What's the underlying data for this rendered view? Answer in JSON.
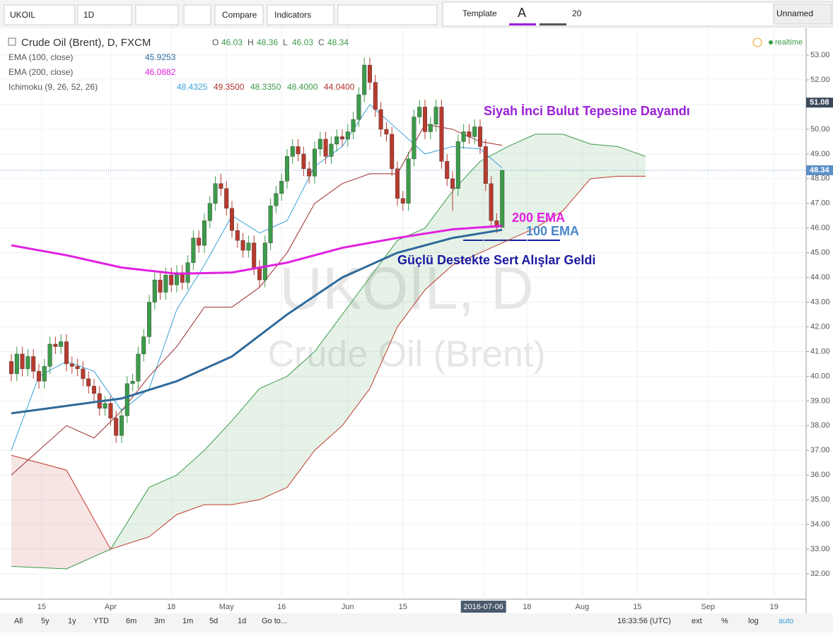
{
  "toolbar": {
    "symbol": "UKOIL",
    "interval": "1D",
    "compare": "Compare",
    "indicators": "Indicators",
    "template": "Template",
    "font_icon": "A",
    "font_size": "20",
    "layout": "Unnamed"
  },
  "bottom_bar": {
    "ranges": [
      "All",
      "5y",
      "1y",
      "YTD",
      "6m",
      "3m",
      "1m",
      "5d",
      "1d",
      "Go to..."
    ],
    "clock": "16:33:56 (UTC)",
    "options": [
      "ext",
      "%",
      "log",
      "auto"
    ]
  },
  "chart_data": {
    "type": "candlestick",
    "title": "Crude Oil (Brent), D, FXCM",
    "status": "realtime",
    "watermark": [
      "UKOIL, D",
      "Crude Oil (Brent)"
    ],
    "ohlc_labels": [
      "O",
      "H",
      "L",
      "C"
    ],
    "indicators": [
      {
        "name": "EMA (100, close)",
        "values": [
          45.9253
        ],
        "color": "#2c6a9e"
      },
      {
        "name": "EMA (200, close)",
        "values": [
          46.0882
        ],
        "color": "#e020e0"
      },
      {
        "name": "Ichimoku (9, 26, 52, 26)",
        "values": [
          48.4325,
          49.35,
          48.335,
          48.4,
          44.04
        ],
        "value_labels": [
          "48.4325",
          "49.3500",
          "48.3350",
          "48.4000",
          "44.0400"
        ],
        "colors": [
          "#3aa0d8",
          "#b03030",
          "#3c9b4a",
          "#3c9b4a",
          "#b03030"
        ]
      }
    ],
    "up_color": "#3c9b4a",
    "down_color": "#b83a2e",
    "candles": [
      [
        40.6,
        40.9,
        39.8,
        40.1
      ],
      [
        40.1,
        41.2,
        39.8,
        40.9
      ],
      [
        40.9,
        41.2,
        40.0,
        40.3
      ],
      [
        40.3,
        41.1,
        40.0,
        40.8
      ],
      [
        40.8,
        41.1,
        39.9,
        40.2
      ],
      [
        40.2,
        40.5,
        39.5,
        39.8
      ],
      [
        39.8,
        40.7,
        39.5,
        40.4
      ],
      [
        40.4,
        41.6,
        40.1,
        41.3
      ],
      [
        41.3,
        41.6,
        40.9,
        41.2
      ],
      [
        41.2,
        41.7,
        40.9,
        41.4
      ],
      [
        41.4,
        41.7,
        40.2,
        40.5
      ],
      [
        40.5,
        40.8,
        40.1,
        40.4
      ],
      [
        40.4,
        40.7,
        40.0,
        40.3
      ],
      [
        40.3,
        40.6,
        39.6,
        39.9
      ],
      [
        39.9,
        40.2,
        39.3,
        39.6
      ],
      [
        39.6,
        39.9,
        39.0,
        39.3
      ],
      [
        39.3,
        39.6,
        38.4,
        38.7
      ],
      [
        38.7,
        39.2,
        38.4,
        38.9
      ],
      [
        38.9,
        39.2,
        38.0,
        38.3
      ],
      [
        38.3,
        38.6,
        37.3,
        37.6
      ],
      [
        37.6,
        38.7,
        37.3,
        38.4
      ],
      [
        38.4,
        40.0,
        38.1,
        39.7
      ],
      [
        39.7,
        40.1,
        39.4,
        39.8
      ],
      [
        39.8,
        41.2,
        39.5,
        40.9
      ],
      [
        40.9,
        41.9,
        40.6,
        41.6
      ],
      [
        41.6,
        43.3,
        41.3,
        43.0
      ],
      [
        43.0,
        44.2,
        42.7,
        43.9
      ],
      [
        43.9,
        44.2,
        43.1,
        43.4
      ],
      [
        43.4,
        44.4,
        43.1,
        44.1
      ],
      [
        44.1,
        44.4,
        43.4,
        43.7
      ],
      [
        43.7,
        44.5,
        43.4,
        44.2
      ],
      [
        44.2,
        44.5,
        43.5,
        43.8
      ],
      [
        43.8,
        44.9,
        43.5,
        44.6
      ],
      [
        44.6,
        45.9,
        44.3,
        45.6
      ],
      [
        45.6,
        45.9,
        45.0,
        45.3
      ],
      [
        45.3,
        46.6,
        45.0,
        46.3
      ],
      [
        46.3,
        47.3,
        46.0,
        47.0
      ],
      [
        47.0,
        48.1,
        46.7,
        47.8
      ],
      [
        47.8,
        48.2,
        47.3,
        47.6
      ],
      [
        47.6,
        47.9,
        46.5,
        46.8
      ],
      [
        46.8,
        47.1,
        45.6,
        45.9
      ],
      [
        45.9,
        46.2,
        45.2,
        45.5
      ],
      [
        45.5,
        45.8,
        44.8,
        45.1
      ],
      [
        45.1,
        45.7,
        44.8,
        45.4
      ],
      [
        45.4,
        45.7,
        44.1,
        44.4
      ],
      [
        44.4,
        44.7,
        43.6,
        43.9
      ],
      [
        43.9,
        45.7,
        43.6,
        45.4
      ],
      [
        45.4,
        47.2,
        45.1,
        46.9
      ],
      [
        46.9,
        47.7,
        46.6,
        47.4
      ],
      [
        47.4,
        48.2,
        47.1,
        47.9
      ],
      [
        47.9,
        49.2,
        47.6,
        48.9
      ],
      [
        48.9,
        49.6,
        48.6,
        49.3
      ],
      [
        49.3,
        49.6,
        48.7,
        49.0
      ],
      [
        49.0,
        49.3,
        48.1,
        48.4
      ],
      [
        48.4,
        48.7,
        47.8,
        48.1
      ],
      [
        48.1,
        49.5,
        47.8,
        49.2
      ],
      [
        49.2,
        49.9,
        48.9,
        49.6
      ],
      [
        49.6,
        49.9,
        48.6,
        48.9
      ],
      [
        48.9,
        49.7,
        48.6,
        49.4
      ],
      [
        49.4,
        50.0,
        49.1,
        49.7
      ],
      [
        49.7,
        50.0,
        49.3,
        49.6
      ],
      [
        49.6,
        50.2,
        49.3,
        49.9
      ],
      [
        49.9,
        50.7,
        49.6,
        50.4
      ],
      [
        50.4,
        51.7,
        50.1,
        51.4
      ],
      [
        51.4,
        52.9,
        51.1,
        52.6
      ],
      [
        52.6,
        52.9,
        51.6,
        51.9
      ],
      [
        51.9,
        52.2,
        50.5,
        50.8
      ],
      [
        50.8,
        51.1,
        49.7,
        50.0
      ],
      [
        50.0,
        50.3,
        49.5,
        49.8
      ],
      [
        49.8,
        50.1,
        48.1,
        48.4
      ],
      [
        48.4,
        48.7,
        46.9,
        47.2
      ],
      [
        47.2,
        47.5,
        46.7,
        47.0
      ],
      [
        47.0,
        49.1,
        46.7,
        48.8
      ],
      [
        48.8,
        50.8,
        48.5,
        50.5
      ],
      [
        50.5,
        51.2,
        50.2,
        50.9
      ],
      [
        50.9,
        51.2,
        49.6,
        49.9
      ],
      [
        49.9,
        50.5,
        49.6,
        50.2
      ],
      [
        50.2,
        51.2,
        49.9,
        50.9
      ],
      [
        50.9,
        51.2,
        48.4,
        48.7
      ],
      [
        48.7,
        49.0,
        47.7,
        48.0
      ],
      [
        48.0,
        48.3,
        46.7,
        47.6
      ],
      [
        47.6,
        49.8,
        47.3,
        49.5
      ],
      [
        49.5,
        50.2,
        49.2,
        49.9
      ],
      [
        49.9,
        50.2,
        49.4,
        49.7
      ],
      [
        49.7,
        50.4,
        49.4,
        50.1
      ],
      [
        50.1,
        50.4,
        49.0,
        49.3
      ],
      [
        49.3,
        49.6,
        47.5,
        47.8
      ],
      [
        47.8,
        48.1,
        46.0,
        46.3
      ],
      [
        46.3,
        46.6,
        45.8,
        46.03
      ],
      [
        46.03,
        48.36,
        46.03,
        48.34
      ]
    ],
    "lines": [
      {
        "name": "EMA 100",
        "color": "#2f6a9a",
        "width": 3,
        "x": [
          0,
          10,
          20,
          30,
          40,
          50,
          60,
          70,
          80,
          89
        ],
        "values": [
          38.5,
          38.8,
          39.1,
          39.8,
          40.8,
          42.5,
          44.0,
          45.0,
          45.6,
          45.93
        ]
      },
      {
        "name": "EMA 200",
        "color": "#e020e0",
        "width": 3,
        "x": [
          0,
          10,
          20,
          30,
          40,
          50,
          60,
          70,
          80,
          89
        ],
        "values": [
          45.3,
          44.9,
          44.4,
          44.15,
          44.2,
          44.6,
          45.2,
          45.6,
          45.95,
          46.09
        ]
      },
      {
        "name": "Tenkan",
        "color": "#3aa0d8",
        "width": 1,
        "x": [
          0,
          5,
          10,
          15,
          20,
          25,
          30,
          35,
          40,
          45,
          50,
          55,
          60,
          65,
          70,
          75,
          80,
          85,
          89
        ],
        "values": [
          37.0,
          40.0,
          40.6,
          40.2,
          38.6,
          39.5,
          42.7,
          44.5,
          46.5,
          45.8,
          46.3,
          48.5,
          49.3,
          51.0,
          50.0,
          49.0,
          49.3,
          49.2,
          48.43
        ]
      },
      {
        "name": "Kijun",
        "color": "#9b2a2a",
        "width": 1,
        "x": [
          0,
          5,
          10,
          15,
          20,
          25,
          30,
          35,
          40,
          45,
          50,
          55,
          60,
          65,
          70,
          75,
          80,
          85,
          89
        ],
        "values": [
          36.0,
          37.0,
          38.0,
          37.5,
          38.6,
          40.0,
          41.2,
          42.8,
          42.8,
          43.6,
          45.0,
          47.0,
          47.8,
          48.2,
          48.2,
          50.2,
          50.0,
          49.5,
          49.35
        ]
      }
    ],
    "cloud": {
      "x": [
        0,
        10,
        18,
        25,
        30,
        35,
        40,
        45,
        50,
        55,
        60,
        65,
        70,
        75,
        80,
        85,
        90,
        95,
        100,
        105,
        110,
        115
      ],
      "span_a": [
        32.3,
        32.2,
        33.0,
        35.5,
        36.0,
        37.0,
        38.2,
        39.5,
        40.0,
        41.0,
        42.5,
        44.0,
        45.5,
        46.0,
        47.5,
        48.7,
        49.3,
        49.8,
        49.8,
        49.4,
        49.3,
        48.9
      ],
      "span_b": [
        36.8,
        36.2,
        33.0,
        33.5,
        34.4,
        34.8,
        34.8,
        35.0,
        35.5,
        37.0,
        38.0,
        39.5,
        42.0,
        43.5,
        44.5,
        45.0,
        45.5,
        46.0,
        46.7,
        48.0,
        48.1,
        48.1
      ],
      "up_color": "#3c9b4a",
      "down_color": "#c0392b"
    },
    "price_tags": [
      {
        "value": 51.08,
        "color": "#3b4a5a"
      },
      {
        "value": 48.34,
        "color": "#5a8fc8"
      }
    ],
    "xlim": [
      -2.05,
      144.1
    ],
    "ylim": [
      30.97,
      54.09
    ],
    "yticks": [
      {
        "value": 32,
        "label": "32.00"
      },
      {
        "value": 33,
        "label": "33.00"
      },
      {
        "value": 34,
        "label": "34.00"
      },
      {
        "value": 35,
        "label": "35.00"
      },
      {
        "value": 36,
        "label": "36.00"
      },
      {
        "value": 37,
        "label": "37.00"
      },
      {
        "value": 38,
        "label": "38.00"
      },
      {
        "value": 39,
        "label": "39.00"
      },
      {
        "value": 40,
        "label": "40.00"
      },
      {
        "value": 41,
        "label": "41.00"
      },
      {
        "value": 42,
        "label": "42.00"
      },
      {
        "value": 43,
        "label": "43.00"
      },
      {
        "value": 44,
        "label": "44.00"
      },
      {
        "value": 45,
        "label": "45.00"
      },
      {
        "value": 46,
        "label": "46.00"
      },
      {
        "value": 47,
        "label": "47.00"
      },
      {
        "value": 48,
        "label": "48.00"
      },
      {
        "value": 49,
        "label": "49.00"
      },
      {
        "value": 50,
        "label": "50.00"
      },
      {
        "value": 51,
        "label": "51.00"
      },
      {
        "value": 52,
        "label": "52.00"
      },
      {
        "value": 53,
        "label": "53.00"
      }
    ],
    "xticks": [
      {
        "value": 5.5,
        "label": "15"
      },
      {
        "value": 18,
        "label": "Apr"
      },
      {
        "value": 29,
        "label": "18"
      },
      {
        "value": 39,
        "label": "May"
      },
      {
        "value": 49,
        "label": "16"
      },
      {
        "value": 61,
        "label": "Jun"
      },
      {
        "value": 71,
        "label": "15"
      },
      {
        "value": 85.6,
        "label": "2016-07-06"
      },
      {
        "value": 93.5,
        "label": "18"
      },
      {
        "value": 103.5,
        "label": "Aug"
      },
      {
        "value": 113.5,
        "label": "15"
      },
      {
        "value": 126.3,
        "label": "Sep"
      },
      {
        "value": 138.3,
        "label": "19"
      }
    ],
    "grid": true,
    "annotations": [
      {
        "text": "Siyah İnci Bulut Tepesine Dayandı",
        "color": "#9b1fd8"
      },
      {
        "text": "200 EMA",
        "color": "#e020e0"
      },
      {
        "text": "100 EMA",
        "color": "#4a86c8"
      },
      {
        "text": "Güçlü Destekte Sert Alışlar Geldi",
        "color": "#1a1aa0"
      }
    ]
  }
}
